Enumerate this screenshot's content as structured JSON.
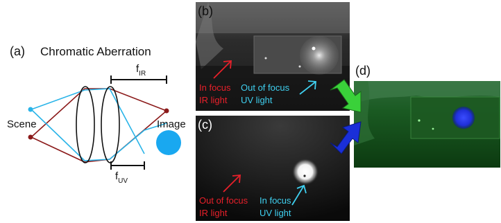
{
  "panel_a": {
    "letter": "(a)",
    "title": "Chromatic Aberration",
    "focal_ir_main": "f",
    "focal_ir_sub": "IR",
    "focal_uv_main": "f",
    "focal_uv_sub": "UV",
    "scene_label": "Scene",
    "image_label": "Image"
  },
  "panel_b": {
    "letter": "(b)",
    "left_line1": "In focus",
    "left_line2": "IR light",
    "right_line1": "Out of focus",
    "right_line2": "UV light"
  },
  "panel_c": {
    "letter": "(c)",
    "left_line1": "Out of focus",
    "left_line2": "IR light",
    "right_line1": "In focus",
    "right_line2": "UV light"
  },
  "panel_d": {
    "letter": "(d)"
  },
  "colors": {
    "ir": "#8b1a1a",
    "uv": "#2ab4e8",
    "ir_text": "#e8202a",
    "uv_text": "#3fd0f0",
    "green_arrow": "#3ad13a",
    "blue_arrow": "#1a2fd8",
    "uv_blob": "#19a8f0"
  }
}
